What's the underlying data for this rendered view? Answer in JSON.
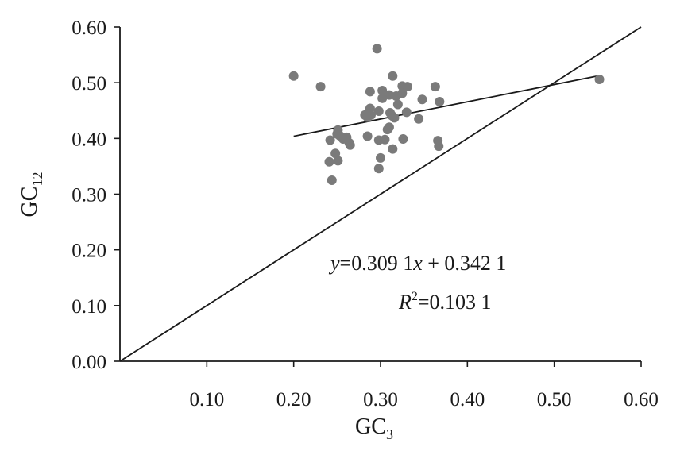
{
  "chart_data": {
    "type": "scatter",
    "xlabel": {
      "base": "GC",
      "sub": "3"
    },
    "ylabel": {
      "base": "GC",
      "sub": "12"
    },
    "xlim": [
      0,
      0.6
    ],
    "ylim": [
      0,
      0.6
    ],
    "x_ticks": [
      "0.10",
      "0.20",
      "0.30",
      "0.40",
      "0.50",
      "0.60"
    ],
    "y_ticks": [
      "0.00",
      "0.10",
      "0.20",
      "0.30",
      "0.40",
      "0.50",
      "0.60"
    ],
    "grid": false,
    "colors": {
      "points": "#7a7a7a",
      "lines": "#1a1a1a"
    },
    "series": [
      {
        "points": [
          [
            0.2,
            0.512
          ],
          [
            0.231,
            0.493
          ],
          [
            0.288,
            0.484
          ],
          [
            0.296,
            0.561
          ],
          [
            0.314,
            0.512
          ],
          [
            0.302,
            0.486
          ],
          [
            0.325,
            0.494
          ],
          [
            0.331,
            0.493
          ],
          [
            0.363,
            0.493
          ],
          [
            0.368,
            0.466
          ],
          [
            0.348,
            0.47
          ],
          [
            0.31,
            0.478
          ],
          [
            0.318,
            0.476
          ],
          [
            0.325,
            0.481
          ],
          [
            0.302,
            0.472
          ],
          [
            0.32,
            0.461
          ],
          [
            0.288,
            0.454
          ],
          [
            0.298,
            0.449
          ],
          [
            0.311,
            0.446
          ],
          [
            0.313,
            0.441
          ],
          [
            0.33,
            0.447
          ],
          [
            0.282,
            0.442
          ],
          [
            0.285,
            0.438
          ],
          [
            0.289,
            0.442
          ],
          [
            0.316,
            0.437
          ],
          [
            0.344,
            0.435
          ],
          [
            0.31,
            0.42
          ],
          [
            0.308,
            0.416
          ],
          [
            0.251,
            0.415
          ],
          [
            0.25,
            0.408
          ],
          [
            0.253,
            0.405
          ],
          [
            0.261,
            0.402
          ],
          [
            0.285,
            0.404
          ],
          [
            0.242,
            0.397
          ],
          [
            0.257,
            0.399
          ],
          [
            0.264,
            0.392
          ],
          [
            0.265,
            0.388
          ],
          [
            0.298,
            0.397
          ],
          [
            0.305,
            0.398
          ],
          [
            0.326,
            0.399
          ],
          [
            0.366,
            0.396
          ],
          [
            0.367,
            0.386
          ],
          [
            0.314,
            0.381
          ],
          [
            0.248,
            0.373
          ],
          [
            0.3,
            0.365
          ],
          [
            0.241,
            0.358
          ],
          [
            0.251,
            0.36
          ],
          [
            0.298,
            0.346
          ],
          [
            0.244,
            0.325
          ],
          [
            0.552,
            0.506
          ]
        ]
      }
    ],
    "reference_line": {
      "from": [
        0.0,
        0.0
      ],
      "to": [
        0.6,
        0.6
      ]
    },
    "trend_line": {
      "slope": 0.3091,
      "intercept": 0.3421,
      "x_range": [
        0.2,
        0.552
      ]
    },
    "annotations": {
      "equation": {
        "y": "y",
        "rest1": "=0.309 1",
        "x": "x",
        "rest2": " + 0.342 1"
      },
      "r2": {
        "r": "R",
        "sup": "2",
        "rest": "=0.103 1"
      }
    }
  }
}
